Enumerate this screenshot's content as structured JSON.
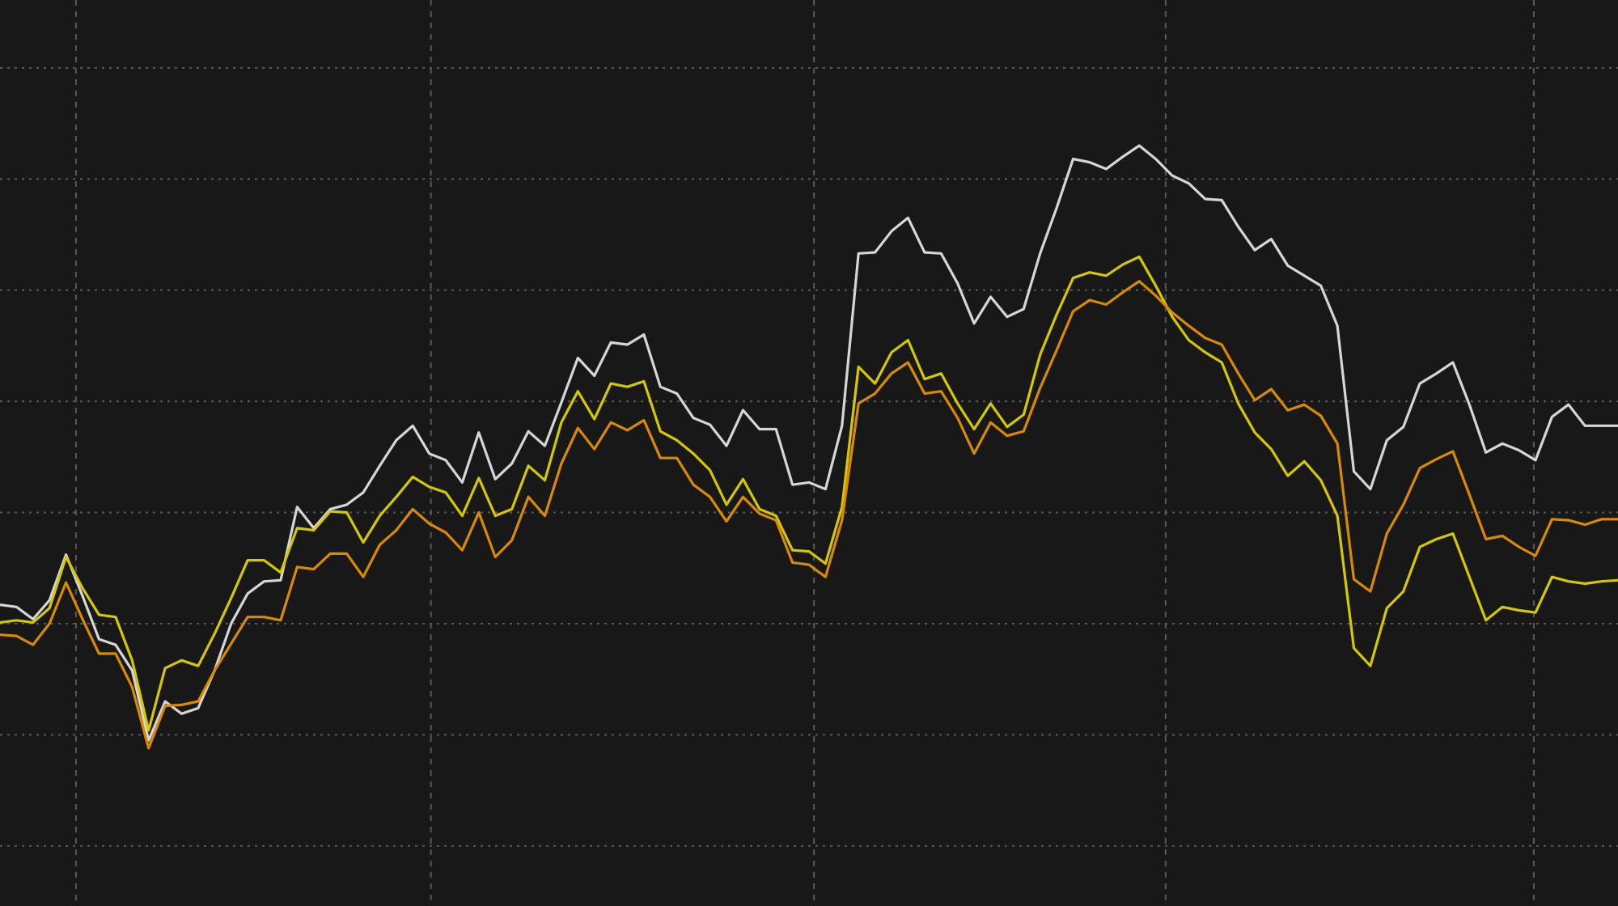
{
  "chart_data": {
    "type": "line",
    "title": "",
    "xlabel": "",
    "ylabel": "",
    "xlim": [
      0,
      98
    ],
    "ylim": [
      -5.4,
      76.1
    ],
    "grid": true,
    "grid_style": "dotted",
    "y_grid": [
      0,
      10,
      20,
      30,
      40,
      50,
      60,
      70
    ],
    "x_grid": [
      4.6,
      26.1,
      49.3,
      70.6,
      92.9
    ],
    "legend": "none",
    "colors": {
      "background": "#181818",
      "grid": "#5a5a5a"
    },
    "series": [
      {
        "color": "#d6d6d6",
        "values": [
          21.7,
          21.5,
          20.4,
          22.1,
          26.2,
          22.5,
          18.6,
          18.1,
          15.8,
          9.5,
          13.0,
          11.9,
          12.4,
          15.8,
          20.0,
          22.7,
          23.8,
          23.9,
          30.5,
          28.6,
          30.3,
          30.7,
          31.8,
          34.2,
          36.5,
          37.8,
          35.3,
          34.7,
          32.7,
          37.2,
          33.0,
          34.4,
          37.3,
          36.0,
          39.9,
          43.9,
          42.3,
          45.3,
          45.1,
          46.0,
          41.3,
          40.7,
          38.5,
          37.9,
          36.0,
          39.2,
          37.5,
          37.5,
          32.5,
          32.7,
          32.1,
          37.8,
          53.3,
          53.4,
          55.3,
          56.5,
          53.4,
          53.3,
          50.6,
          47.0,
          49.4,
          47.6,
          48.3,
          53.3,
          57.4,
          61.8,
          61.5,
          60.9,
          62.0,
          63.0,
          61.8,
          60.3,
          59.6,
          58.2,
          58.1,
          55.7,
          53.6,
          54.6,
          52.2,
          51.3,
          50.4,
          46.8,
          33.7,
          32.1,
          36.5,
          37.7,
          41.6,
          42.5,
          43.5,
          39.7,
          35.4,
          36.2,
          35.6,
          34.7,
          38.6,
          39.7,
          37.8,
          37.8,
          37.8
        ]
      },
      {
        "color": "#d4c800",
        "values": [
          20.1,
          20.3,
          20.1,
          21.4,
          26.0,
          23.2,
          20.8,
          20.6,
          16.7,
          10.4,
          16.0,
          16.7,
          16.2,
          19.1,
          22.3,
          25.7,
          25.7,
          24.6,
          28.6,
          28.4,
          30.1,
          30.0,
          27.3,
          29.7,
          31.4,
          33.2,
          32.3,
          31.8,
          29.7,
          33.1,
          29.7,
          30.3,
          34.2,
          32.9,
          38.1,
          40.9,
          38.4,
          41.6,
          41.3,
          41.8,
          37.3,
          36.5,
          35.3,
          33.8,
          30.7,
          33.0,
          30.3,
          29.7,
          26.6,
          26.5,
          25.4,
          30.5,
          43.1,
          41.6,
          44.4,
          45.5,
          42.0,
          42.5,
          39.8,
          37.5,
          39.8,
          37.7,
          38.8,
          44.2,
          47.8,
          51.1,
          51.6,
          51.3,
          52.3,
          53.0,
          50.4,
          47.6,
          45.5,
          44.4,
          43.5,
          39.8,
          37.2,
          35.7,
          33.3,
          34.6,
          32.9,
          29.7,
          17.8,
          16.2,
          21.4,
          22.9,
          26.9,
          27.6,
          28.1,
          24.2,
          20.3,
          21.5,
          21.2,
          21.0,
          24.2,
          23.8,
          23.6,
          23.8,
          23.9
        ]
      },
      {
        "color": "#d98a00",
        "values": [
          19.0,
          18.9,
          18.1,
          20.0,
          23.7,
          20.4,
          17.3,
          17.3,
          14.3,
          8.8,
          12.6,
          12.7,
          13.0,
          15.8,
          18.2,
          20.6,
          20.6,
          20.3,
          25.1,
          24.9,
          26.3,
          26.3,
          24.2,
          27.1,
          28.4,
          30.3,
          29.0,
          28.2,
          26.6,
          30.0,
          26.0,
          27.5,
          31.4,
          29.7,
          34.4,
          37.6,
          35.7,
          38.1,
          37.4,
          38.3,
          34.9,
          34.9,
          32.5,
          31.4,
          29.2,
          31.4,
          29.9,
          29.3,
          25.5,
          25.3,
          24.2,
          29.3,
          39.8,
          40.7,
          42.5,
          43.5,
          40.7,
          40.9,
          38.5,
          35.3,
          38.1,
          36.9,
          37.3,
          41.2,
          44.6,
          48.1,
          49.1,
          48.7,
          49.8,
          50.8,
          49.5,
          48.0,
          46.8,
          45.7,
          45.1,
          42.5,
          40.1,
          41.1,
          39.2,
          39.7,
          38.7,
          36.2,
          24.0,
          22.9,
          28.1,
          30.7,
          34.0,
          34.8,
          35.5,
          31.6,
          27.6,
          27.9,
          26.9,
          26.1,
          29.4,
          29.3,
          28.9,
          29.4,
          29.4
        ]
      }
    ]
  }
}
